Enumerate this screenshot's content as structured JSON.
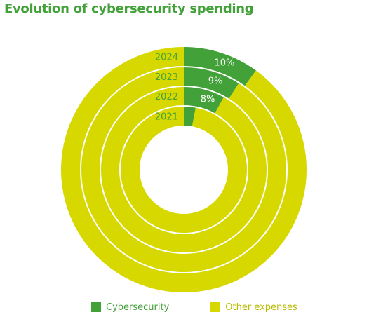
{
  "title": "Evolution of cybersecurity spending",
  "colors": {
    "title": "#43a13a",
    "cybersecurity": "#43a13a",
    "other": "#d6d800",
    "separator": "#ffffff",
    "year_label": "#43a13a",
    "pct_label": "#ffffff",
    "legend_text_cyber": "#43a13a",
    "legend_text_other": "#b8bb00"
  },
  "legend": [
    {
      "label": "Cybersecurity",
      "color_key": "cybersecurity"
    },
    {
      "label": "Other expenses",
      "color_key": "other"
    }
  ],
  "chart_data": {
    "type": "donut",
    "title": "Evolution of cybersecurity spending",
    "series_names": [
      "Cybersecurity",
      "Other expenses"
    ],
    "rings": [
      {
        "year": "2021",
        "cybersecurity": 3,
        "other": 97,
        "label": ""
      },
      {
        "year": "2022",
        "cybersecurity": 8,
        "other": 92,
        "label": "8%"
      },
      {
        "year": "2023",
        "cybersecurity": 9,
        "other": 91,
        "label": "9%"
      },
      {
        "year": "2024",
        "cybersecurity": 10,
        "other": 90,
        "label": "10%"
      }
    ],
    "unit": "%"
  }
}
